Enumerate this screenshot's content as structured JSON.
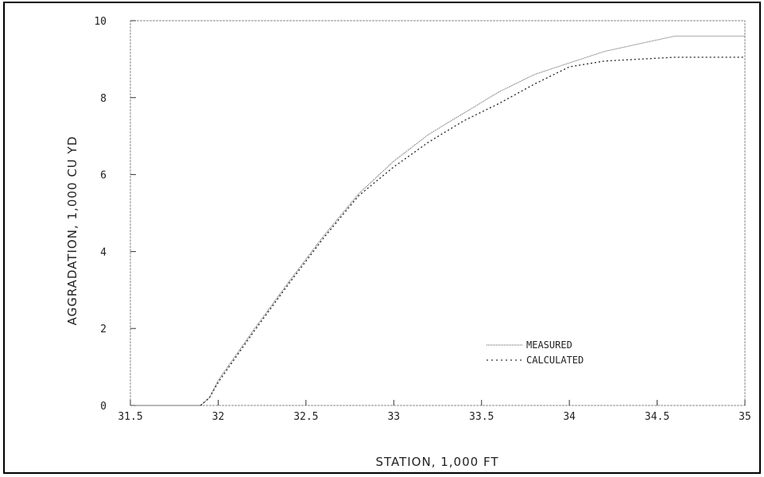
{
  "chart_data": {
    "type": "line",
    "title": "",
    "xlabel": "STATION, 1,000 FT",
    "ylabel": "AGGRADATION, 1,000 CU YD",
    "xlim": [
      31.5,
      35
    ],
    "ylim": [
      0,
      10
    ],
    "x_ticks": [
      31.5,
      32,
      32.5,
      33,
      33.5,
      34,
      34.5,
      35
    ],
    "x_tick_labels": [
      "31.5",
      "32",
      "32.5",
      "33",
      "33.5",
      "34",
      "34.5",
      "35"
    ],
    "y_ticks": [
      0,
      2,
      4,
      6,
      8,
      10
    ],
    "y_tick_labels": [
      "0",
      "2",
      "4",
      "6",
      "8",
      "10"
    ],
    "grid": false,
    "legend": "lower-right",
    "series": [
      {
        "name": "MEASURED",
        "style": "dotted-fine",
        "x": [
          31.5,
          31.9,
          31.95,
          32.0,
          32.2,
          32.4,
          32.6,
          32.8,
          33.0,
          33.2,
          33.4,
          33.6,
          33.8,
          34.0,
          34.2,
          34.4,
          34.6,
          34.8,
          35.0
        ],
        "y": [
          0,
          0,
          0.2,
          0.65,
          1.95,
          3.2,
          4.4,
          5.5,
          6.35,
          7.05,
          7.6,
          8.15,
          8.6,
          8.9,
          9.2,
          9.4,
          9.6,
          9.6,
          9.6
        ]
      },
      {
        "name": "CALCULATED",
        "style": "dotted-coarse",
        "x": [
          31.9,
          31.95,
          32.0,
          32.2,
          32.4,
          32.6,
          32.8,
          33.0,
          33.2,
          33.4,
          33.6,
          33.8,
          34.0,
          34.2,
          34.4,
          34.6,
          34.8,
          35.0
        ],
        "y": [
          0,
          0.2,
          0.6,
          1.9,
          3.15,
          4.35,
          5.45,
          6.2,
          6.85,
          7.4,
          7.85,
          8.35,
          8.8,
          8.95,
          9.0,
          9.05,
          9.05,
          9.05
        ]
      }
    ]
  }
}
